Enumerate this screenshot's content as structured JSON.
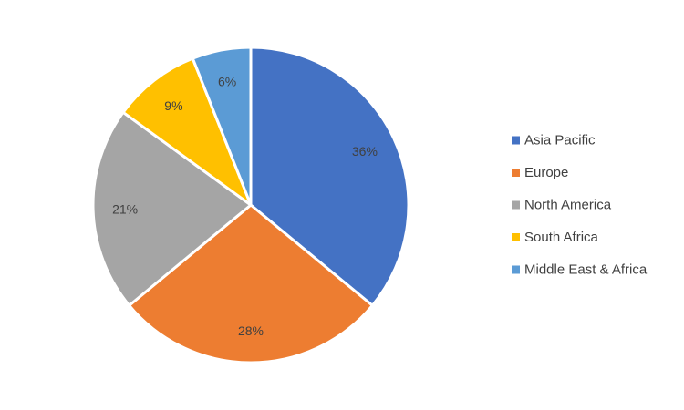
{
  "chart_data": {
    "type": "pie",
    "categories": [
      "Asia Pacific",
      "Europe",
      "North America",
      "South Africa",
      "Middle East & Africa"
    ],
    "values": [
      36,
      28,
      21,
      9,
      6
    ],
    "data_labels": [
      "36%",
      "28%",
      "21%",
      "9%",
      "6%"
    ],
    "colors": [
      "#4472c4",
      "#ed7d31",
      "#a5a5a5",
      "#ffc000",
      "#5b9bd5"
    ],
    "unit": "%",
    "start": "12 o'clock",
    "direction": "clockwise",
    "legend": {
      "position": "right",
      "entries": [
        "Asia Pacific",
        "Europe",
        "North America",
        "South Africa",
        "Middle East & Africa"
      ]
    }
  }
}
